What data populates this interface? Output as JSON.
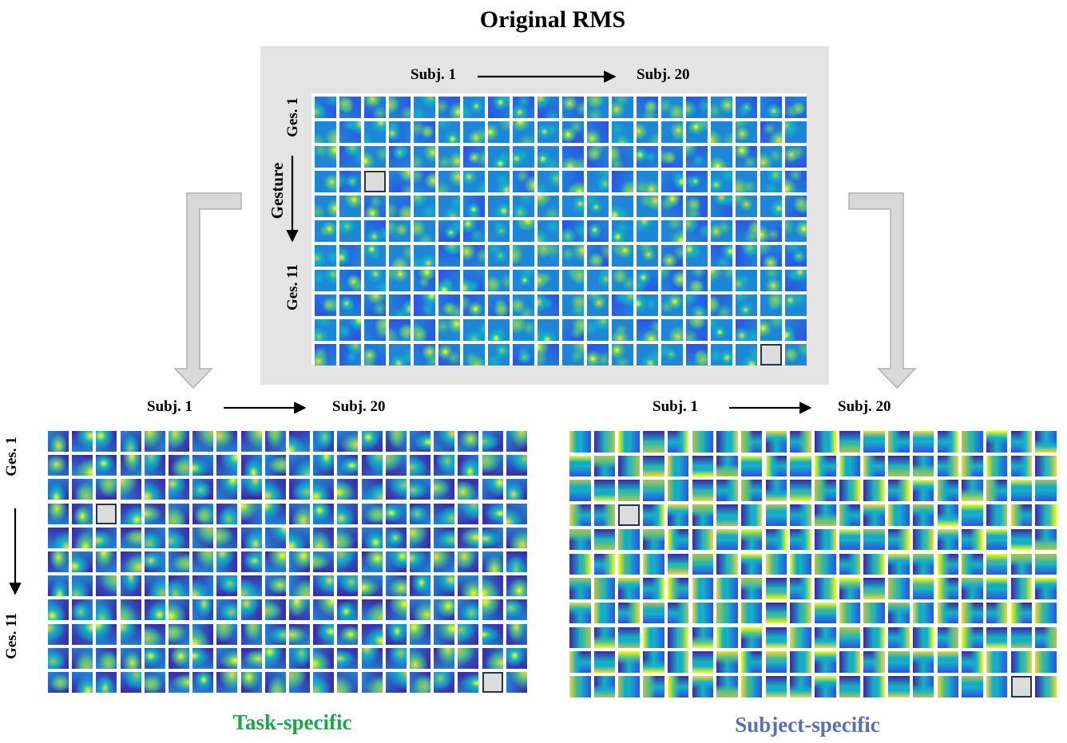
{
  "title": "Original RMS",
  "top_panel": {
    "subj_start": "Subj. 1",
    "subj_end": "Subj. 20",
    "ges_start": "Ges. 1",
    "axis_label": "Gesture",
    "ges_end": "Ges. 11"
  },
  "task_panel": {
    "subj_start": "Subj. 1",
    "subj_end": "Subj. 20",
    "ges_start": "Ges. 1",
    "ges_end": "Ges. 11",
    "caption": "Task-specific",
    "caption_color": "#1aa84a"
  },
  "subject_panel": {
    "subj_start": "Subj. 1",
    "subj_end": "Subj. 20",
    "caption": "Subject-specific",
    "caption_color": "#5a6fb8"
  },
  "grid": {
    "rows": 11,
    "cols": 20
  },
  "colormap": [
    "#3d26a8",
    "#2c52e6",
    "#1e86d6",
    "#14b3c4",
    "#4ec08c",
    "#b6bf52",
    "#f6d53a",
    "#f9fb15"
  ]
}
